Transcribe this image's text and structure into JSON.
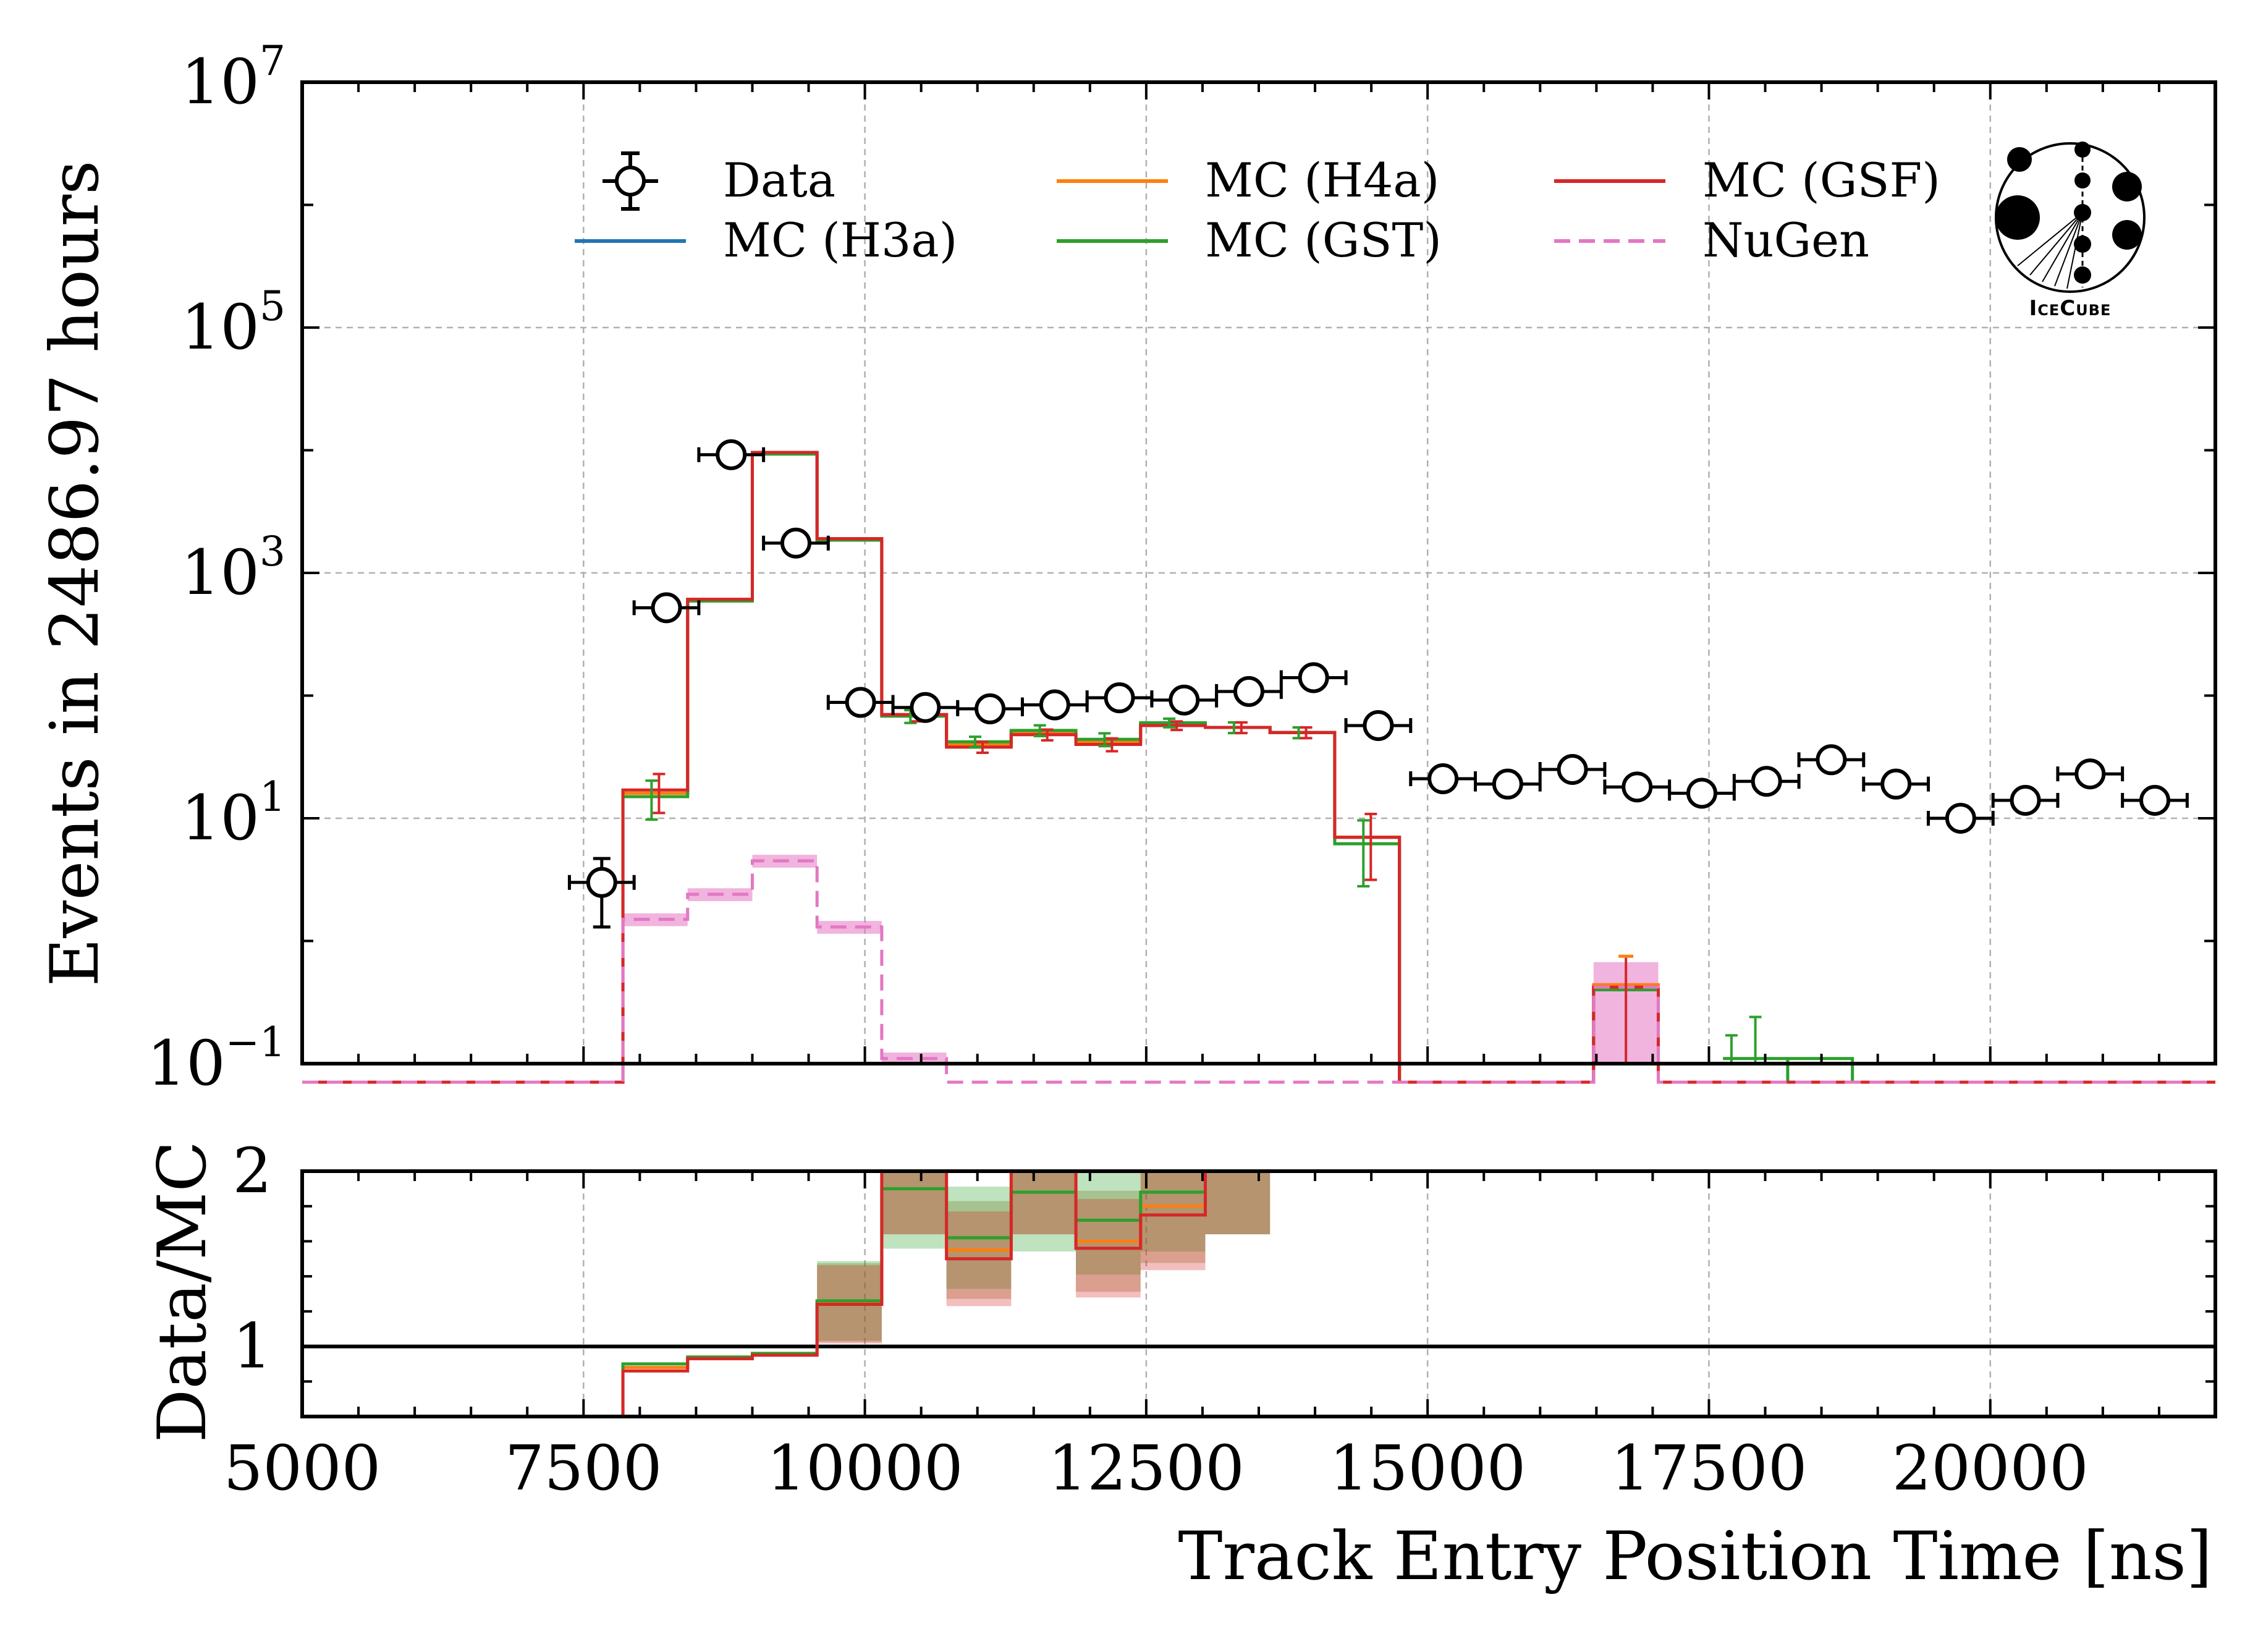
{
  "chart_data": {
    "type": "histogram",
    "xlabel": "Track Entry Position Time [ns]",
    "ylabel_main": "Events in 2486.97 hours",
    "ylabel_ratio": "Data/MC",
    "xlim": [
      5000,
      22000
    ],
    "ylim_main": [
      0.1,
      10000000
    ],
    "yscale_main": "log",
    "ylim_ratio": [
      0.6,
      2.0
    ],
    "x_tick_labels": [
      "5000",
      "7500",
      "10000",
      "12500",
      "15000",
      "17500",
      "20000"
    ],
    "main_y_ticks": [
      {
        "value": 0.1,
        "base": "10",
        "exp": "−1"
      },
      {
        "value": 10,
        "base": "10",
        "exp": "1"
      },
      {
        "value": 1000,
        "base": "10",
        "exp": "3"
      },
      {
        "value": 100000,
        "base": "10",
        "exp": "5"
      },
      {
        "value": 10000000,
        "base": "10",
        "exp": "7"
      }
    ],
    "ratio_y_ticks": [
      "1",
      "2"
    ],
    "bin_edges": [
      4400,
      4975,
      5550,
      6125,
      6700,
      7275,
      7850,
      8425,
      9000,
      9575,
      10150,
      10725,
      11300,
      11875,
      12450,
      13025,
      13600,
      14175,
      14750,
      15325,
      15900,
      16475,
      17050,
      17625,
      18200,
      18775,
      19350,
      19925,
      20500,
      21075,
      21650,
      22225
    ],
    "data": {
      "name": "Data",
      "points": [
        {
          "x": 7662,
          "y": 3.0,
          "ylo": 1.3,
          "yhi": 4.7
        },
        {
          "x": 8237,
          "y": 520
        },
        {
          "x": 8812,
          "y": 9200
        },
        {
          "x": 9387,
          "y": 1750
        },
        {
          "x": 9962,
          "y": 88
        },
        {
          "x": 10537,
          "y": 80
        },
        {
          "x": 11112,
          "y": 78
        },
        {
          "x": 11687,
          "y": 84
        },
        {
          "x": 12262,
          "y": 96
        },
        {
          "x": 12837,
          "y": 92
        },
        {
          "x": 13412,
          "y": 108
        },
        {
          "x": 13987,
          "y": 140
        },
        {
          "x": 14562,
          "y": 57
        },
        {
          "x": 15137,
          "y": 21
        },
        {
          "x": 15712,
          "y": 19
        },
        {
          "x": 16287,
          "y": 25
        },
        {
          "x": 16862,
          "y": 18
        },
        {
          "x": 17437,
          "y": 16
        },
        {
          "x": 18012,
          "y": 20
        },
        {
          "x": 18587,
          "y": 30
        },
        {
          "x": 19162,
          "y": 19
        },
        {
          "x": 19737,
          "y": 10
        },
        {
          "x": 20312,
          "y": 14
        },
        {
          "x": 20887,
          "y": 23
        },
        {
          "x": 21462,
          "y": 14
        }
      ]
    },
    "series": [
      {
        "name": "MC (H3a)",
        "color": "#1f77b4",
        "style": "solid",
        "values": [
          0,
          0,
          0,
          0,
          0,
          0,
          16,
          600,
          9500,
          1900,
          70,
          40,
          50,
          42,
          58,
          55,
          50,
          7,
          0,
          0,
          0,
          0.42,
          0,
          0,
          0,
          0,
          0,
          0,
          0,
          0,
          0
        ]
      },
      {
        "name": "MC (H4a)",
        "color": "#ff7f0e",
        "style": "solid",
        "values": [
          0,
          0,
          0,
          0,
          0,
          0,
          16,
          600,
          9500,
          1900,
          70,
          40,
          50,
          42,
          58,
          55,
          50,
          7,
          0,
          0,
          0,
          0.44,
          0,
          0,
          0,
          0,
          0,
          0,
          0,
          0,
          0
        ]
      },
      {
        "name": "MC (GST)",
        "color": "#2ca02c",
        "style": "solid",
        "values": [
          0,
          0,
          0,
          0,
          0,
          0,
          15,
          590,
          9300,
          1850,
          68,
          42,
          52,
          44,
          60,
          55,
          50,
          6.2,
          0,
          0,
          0,
          0.4,
          0,
          0,
          0.11,
          0,
          0,
          0,
          0,
          0,
          0
        ]
      },
      {
        "name": "MC (GSF)",
        "color": "#d62728",
        "style": "solid",
        "values": [
          0,
          0,
          0,
          0,
          0,
          0,
          17,
          610,
          9600,
          1900,
          70,
          38,
          48,
          40,
          57,
          55,
          50,
          7,
          0,
          0,
          0,
          0.42,
          0,
          0,
          0,
          0,
          0,
          0,
          0,
          0,
          0
        ]
      },
      {
        "name": "NuGen",
        "color": "#e377c2",
        "style": "dashed",
        "values": [
          0,
          0,
          0,
          0,
          0,
          0,
          1.5,
          2.4,
          4.5,
          1.3,
          0.11,
          0,
          0,
          0,
          0,
          0,
          0,
          0,
          0,
          0,
          0,
          0.42,
          0,
          0,
          0,
          0,
          0,
          0,
          0,
          0,
          0
        ]
      }
    ],
    "ratio": {
      "bin_edges": [
        7850,
        8425,
        9000,
        9575,
        10150,
        10725,
        11300,
        11875,
        12450,
        13025,
        13600
      ],
      "series": [
        {
          "name": "MC (H4a)",
          "color": "#ff7f0e",
          "values": [
            0.88,
            0.93,
            0.96,
            1.25,
            2.0,
            1.55,
            2.0,
            1.6,
            1.8,
            2.0
          ]
        },
        {
          "name": "MC (GST)",
          "color": "#2ca02c",
          "values": [
            0.9,
            0.94,
            0.96,
            1.26,
            1.9,
            1.62,
            1.88,
            1.72,
            1.88,
            2.0
          ]
        },
        {
          "name": "MC (GSF)",
          "color": "#d62728",
          "values": [
            0.86,
            0.93,
            0.95,
            1.24,
            2.0,
            1.5,
            2.0,
            1.56,
            1.75,
            2.0
          ]
        }
      ]
    },
    "legend": [
      {
        "label": "Data",
        "kind": "data"
      },
      {
        "label": "MC (H3a)",
        "kind": "line",
        "color": "#1f77b4"
      },
      {
        "label": "MC (H4a)",
        "kind": "line",
        "color": "#ff7f0e"
      },
      {
        "label": "MC (GST)",
        "kind": "line",
        "color": "#2ca02c"
      },
      {
        "label": "MC (GSF)",
        "kind": "line",
        "color": "#d62728"
      },
      {
        "label": "NuGen",
        "kind": "dashed",
        "color": "#e377c2"
      }
    ],
    "legend_position": "top-center",
    "grid": true,
    "logo_text": "IceCube"
  }
}
